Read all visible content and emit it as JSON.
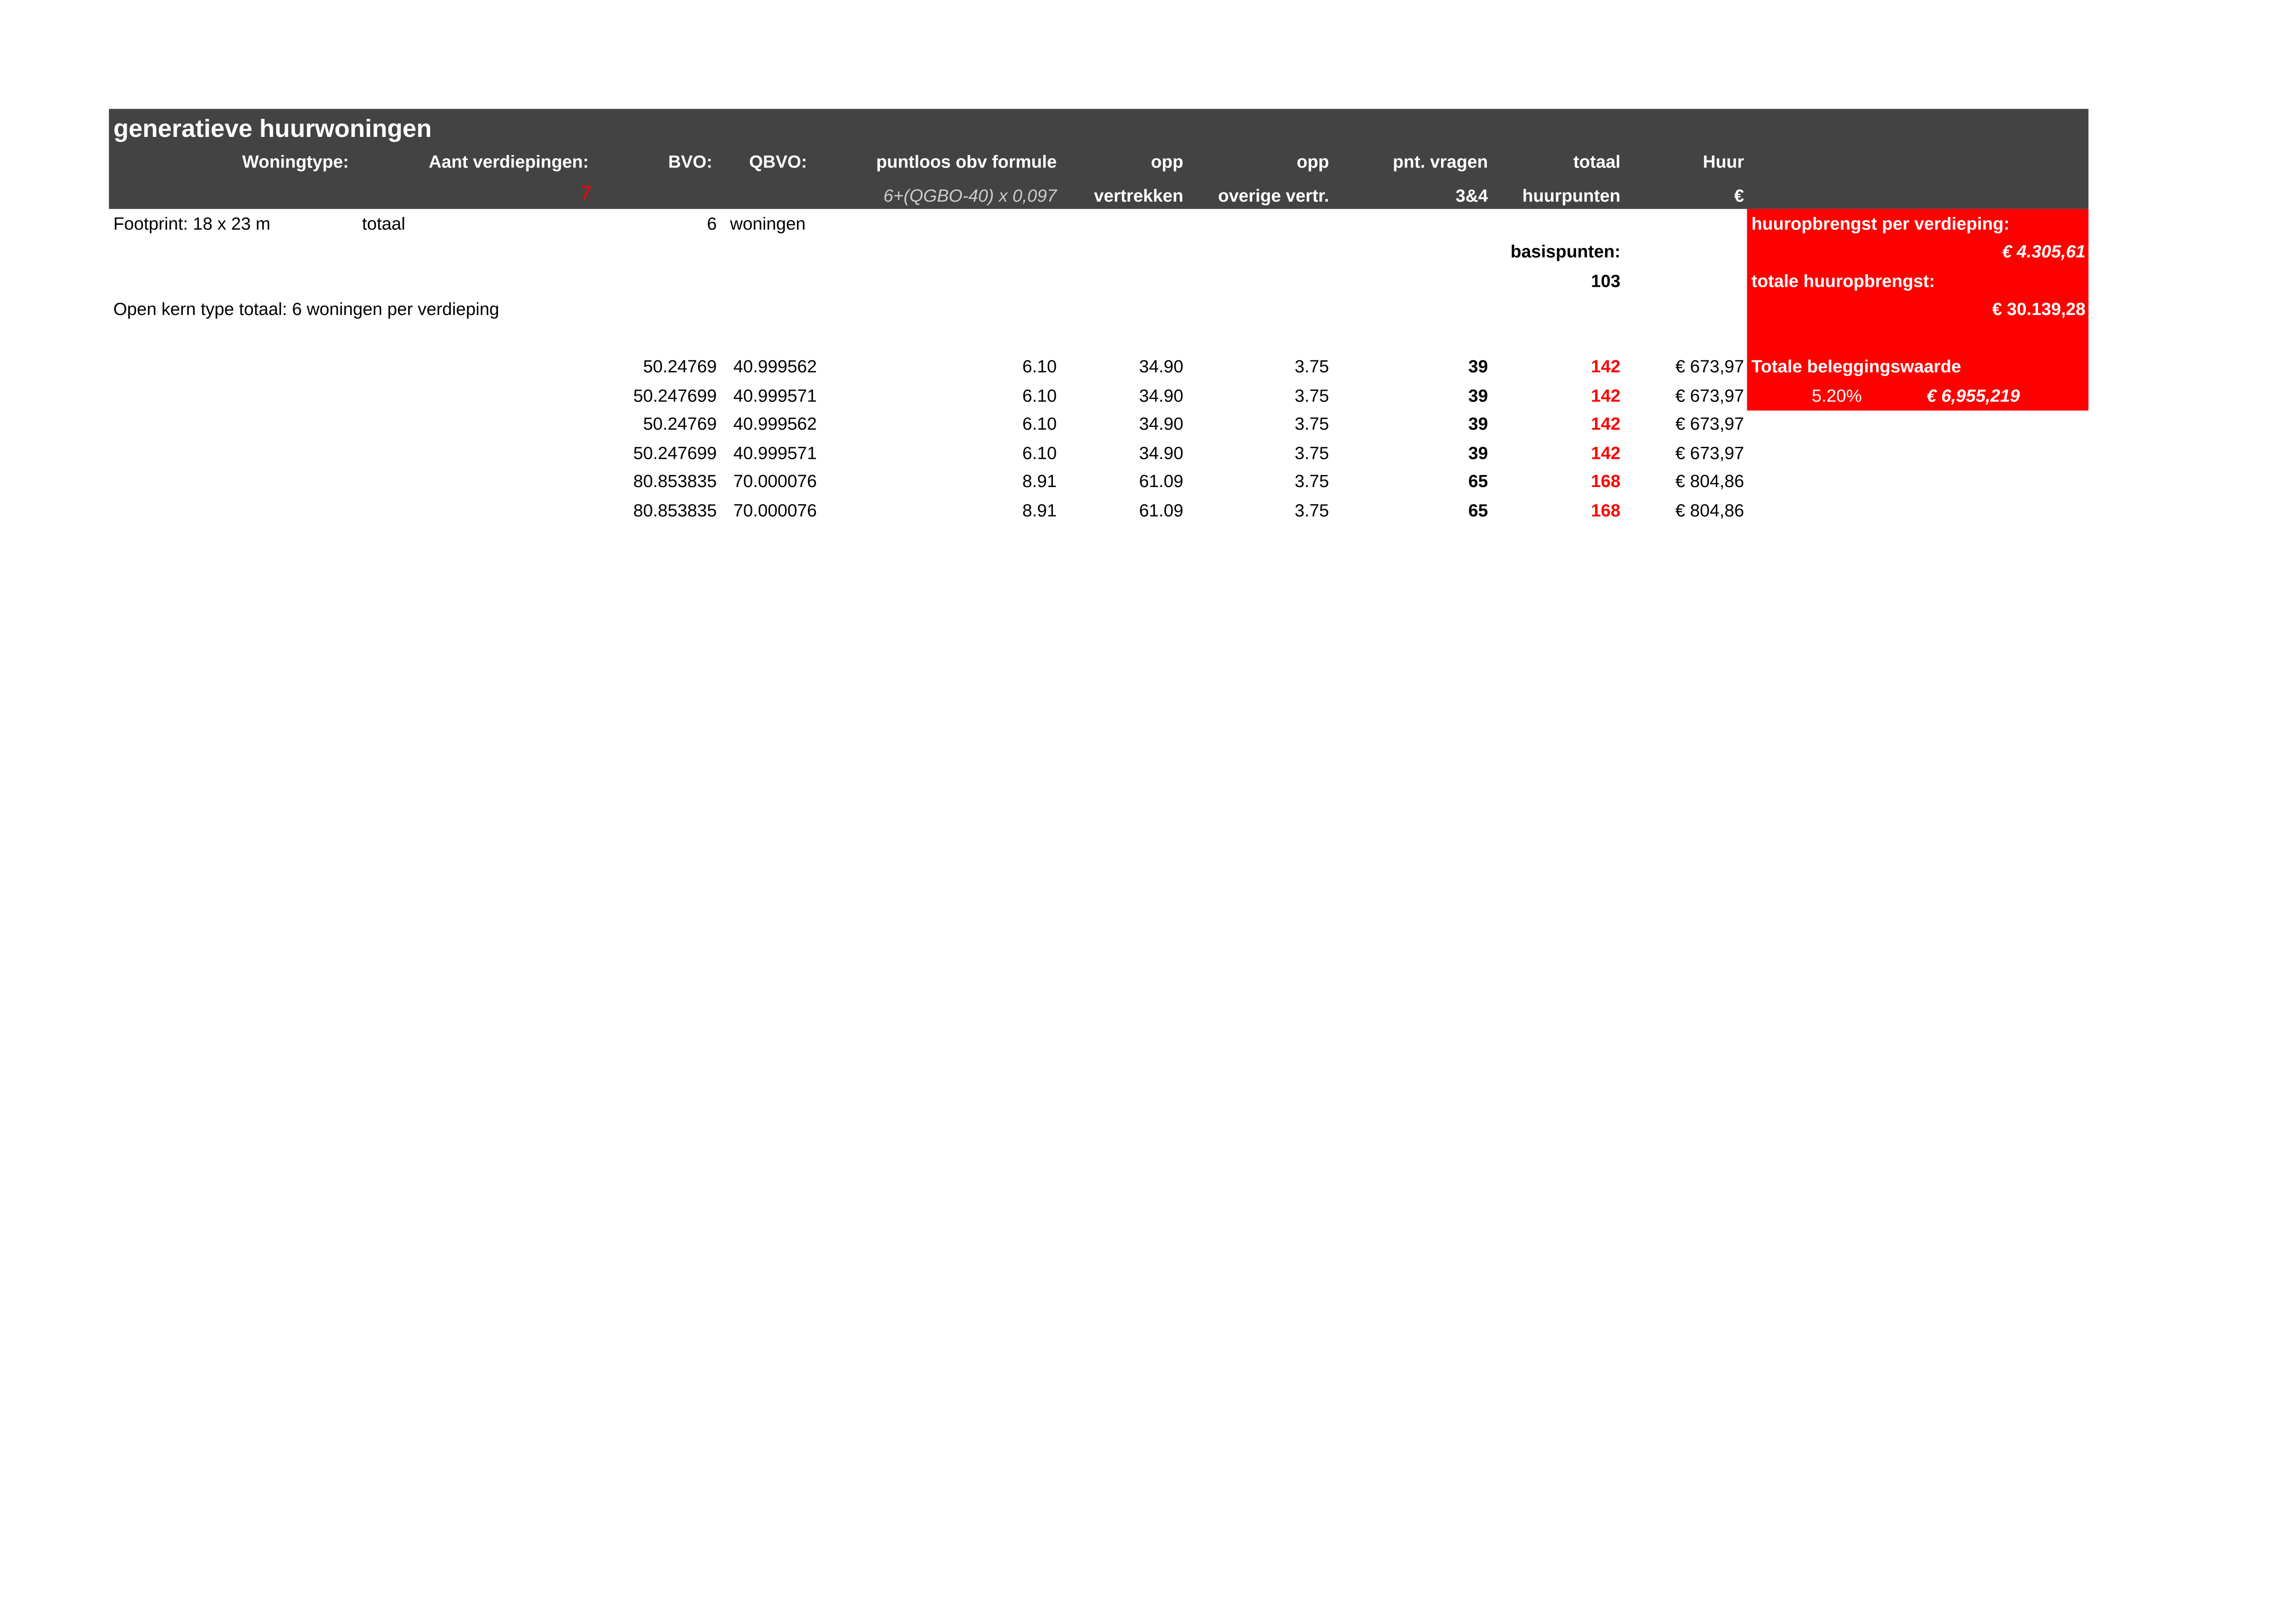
{
  "title": "generatieve huurwoningen",
  "headers": {
    "woningtype": "Woningtype:",
    "verdiepingen": "Aant verdiepingen:",
    "verdiepingen_value": "7",
    "bvo": "BVO:",
    "qbvo": "QBVO:",
    "puntloos": "puntloos obv formule",
    "formule": "6+(QGBO-40) x 0,097",
    "opp1": "opp",
    "opp1_sub": "vertrekken",
    "opp2": "opp",
    "opp2_sub": "overige vertr.",
    "pnt": "pnt. vragen",
    "pnt_sub": "3&4",
    "totaal": "totaal",
    "totaal_sub": "huurpunten",
    "huur": "Huur",
    "huur_sub": "€"
  },
  "info": {
    "footprint": "Footprint: 18 x 23 m",
    "totaal": "totaal",
    "woningen_count": "6",
    "woningen": "woningen",
    "open_kern": "Open kern type totaal: 6  woningen per verdieping",
    "basispunten_label": "basispunten:",
    "basispunten": "103"
  },
  "summary": {
    "per_verdieping_label": "huuropbrengst per verdieping:",
    "per_verdieping": "€ 4.305,61",
    "totaal_label": "totale huuropbrengst:",
    "totaal": "€ 30.139,28",
    "belegging_label": "Totale beleggingswaarde",
    "rate": "5.20%",
    "belegging": "€ 6,955,219"
  },
  "colors": {
    "header_bg": "#434343",
    "accent": "#ff0000"
  },
  "rows": [
    {
      "bvo": "50.24769",
      "qbvo": "40.999562",
      "puntloos": "6.10",
      "opp1": "34.90",
      "opp2": "3.75",
      "pnt": "39",
      "totaal": "142",
      "huur": "€ 673,97"
    },
    {
      "bvo": "50.247699",
      "qbvo": "40.999571",
      "puntloos": "6.10",
      "opp1": "34.90",
      "opp2": "3.75",
      "pnt": "39",
      "totaal": "142",
      "huur": "€ 673,97"
    },
    {
      "bvo": "50.24769",
      "qbvo": "40.999562",
      "puntloos": "6.10",
      "opp1": "34.90",
      "opp2": "3.75",
      "pnt": "39",
      "totaal": "142",
      "huur": "€ 673,97"
    },
    {
      "bvo": "50.247699",
      "qbvo": "40.999571",
      "puntloos": "6.10",
      "opp1": "34.90",
      "opp2": "3.75",
      "pnt": "39",
      "totaal": "142",
      "huur": "€ 673,97"
    },
    {
      "bvo": "80.853835",
      "qbvo": "70.000076",
      "puntloos": "8.91",
      "opp1": "61.09",
      "opp2": "3.75",
      "pnt": "65",
      "totaal": "168",
      "huur": "€ 804,86"
    },
    {
      "bvo": "80.853835",
      "qbvo": "70.000076",
      "puntloos": "8.91",
      "opp1": "61.09",
      "opp2": "3.75",
      "pnt": "65",
      "totaal": "168",
      "huur": "€ 804,86"
    }
  ]
}
